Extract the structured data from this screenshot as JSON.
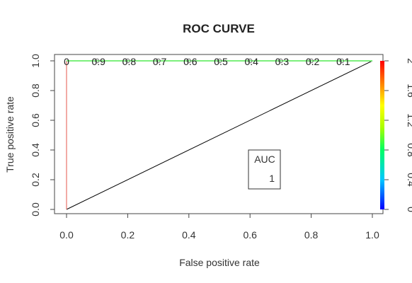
{
  "chart_data": {
    "type": "line",
    "title": "ROC CURVE",
    "xlabel": "False positive rate",
    "ylabel": "True positive rate",
    "xlim": [
      0,
      1
    ],
    "ylim": [
      0,
      1
    ],
    "x_ticks": [
      "0.0",
      "0.2",
      "0.4",
      "0.6",
      "0.8",
      "1.0"
    ],
    "y_ticks": [
      "0.0",
      "0.2",
      "0.4",
      "0.6",
      "0.8",
      "1.0"
    ],
    "grid": false,
    "series": [
      {
        "x": [
          0,
          0,
          1
        ],
        "y": [
          0,
          1,
          1
        ],
        "color_by_cutoff": true
      },
      {
        "x": [
          0,
          1
        ],
        "y": [
          0,
          1
        ],
        "color": "#000000"
      }
    ],
    "threshold_labels": [
      {
        "text": "0",
        "x": 0.0,
        "y": 1.0
      },
      {
        "text": "0.9",
        "x": 0.1,
        "y": 1.0
      },
      {
        "text": "0.8",
        "x": 0.2,
        "y": 1.0
      },
      {
        "text": "0.7",
        "x": 0.3,
        "y": 1.0
      },
      {
        "text": "0.6",
        "x": 0.4,
        "y": 1.0
      },
      {
        "text": "0.5",
        "x": 0.5,
        "y": 1.0
      },
      {
        "text": "0.4",
        "x": 0.6,
        "y": 1.0
      },
      {
        "text": "0.3",
        "x": 0.7,
        "y": 1.0
      },
      {
        "text": "0.2",
        "x": 0.8,
        "y": 1.0
      },
      {
        "text": "0.1",
        "x": 0.9,
        "y": 1.0
      }
    ],
    "colorbar": {
      "range": [
        0,
        2
      ],
      "ticks": [
        "0",
        "0.4",
        "0.8",
        "1.2",
        "1.6",
        "2"
      ],
      "colormap": "rainbow"
    },
    "annotation": {
      "title": "AUC",
      "value": "1"
    }
  }
}
